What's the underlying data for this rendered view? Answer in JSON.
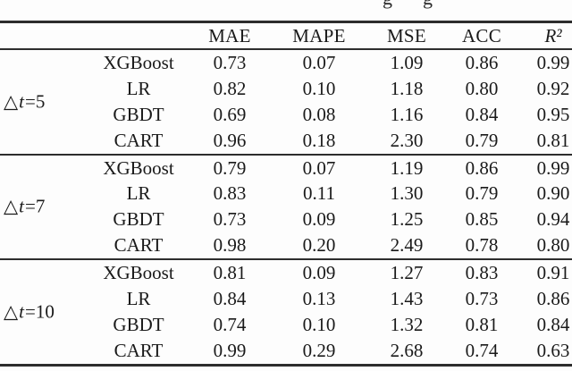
{
  "caption_fragment": {
    "note": "bottom tips of two letters from the cropped caption line above the table",
    "glyphs": [
      "g",
      "g"
    ]
  },
  "table": {
    "columns": [
      "MAE",
      "MAPE",
      "MSE",
      "ACC",
      "R²"
    ],
    "blocks": [
      {
        "label_parts": [
          "△",
          "t",
          "=5"
        ],
        "rows": [
          {
            "model": "XGBoost",
            "values": [
              "0.73",
              "0.07",
              "1.09",
              "0.86",
              "0.99"
            ]
          },
          {
            "model": "LR",
            "values": [
              "0.82",
              "0.10",
              "1.18",
              "0.80",
              "0.92"
            ]
          },
          {
            "model": "GBDT",
            "values": [
              "0.69",
              "0.08",
              "1.16",
              "0.84",
              "0.95"
            ]
          },
          {
            "model": "CART",
            "values": [
              "0.96",
              "0.18",
              "2.30",
              "0.79",
              "0.81"
            ]
          }
        ]
      },
      {
        "label_parts": [
          "△",
          "t",
          "=7"
        ],
        "rows": [
          {
            "model": "XGBoost",
            "values": [
              "0.79",
              "0.07",
              "1.19",
              "0.86",
              "0.99"
            ]
          },
          {
            "model": "LR",
            "values": [
              "0.83",
              "0.11",
              "1.30",
              "0.79",
              "0.90"
            ]
          },
          {
            "model": "GBDT",
            "values": [
              "0.73",
              "0.09",
              "1.25",
              "0.85",
              "0.94"
            ]
          },
          {
            "model": "CART",
            "values": [
              "0.98",
              "0.20",
              "2.49",
              "0.78",
              "0.80"
            ]
          }
        ]
      },
      {
        "label_parts": [
          "△",
          "t",
          "=10"
        ],
        "rows": [
          {
            "model": "XGBoost",
            "values": [
              "0.81",
              "0.09",
              "1.27",
              "0.83",
              "0.91"
            ]
          },
          {
            "model": "LR",
            "values": [
              "0.84",
              "0.13",
              "1.43",
              "0.73",
              "0.86"
            ]
          },
          {
            "model": "GBDT",
            "values": [
              "0.74",
              "0.10",
              "1.32",
              "0.81",
              "0.84"
            ]
          },
          {
            "model": "CART",
            "values": [
              "0.99",
              "0.29",
              "2.68",
              "0.74",
              "0.63"
            ]
          }
        ]
      }
    ]
  },
  "colors": {
    "text": "#1a1a1a",
    "rule": "#2d2d2d",
    "background": "#fdfdfd"
  }
}
